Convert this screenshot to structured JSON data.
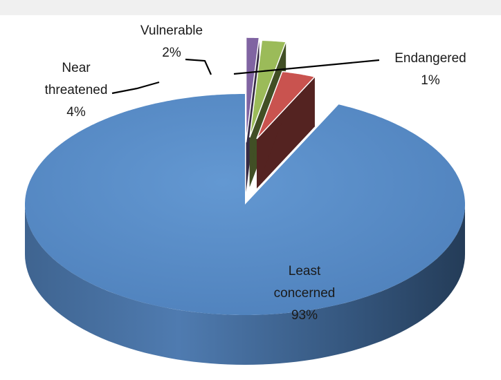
{
  "chart_data": {
    "type": "pie",
    "style": "3d-exploded",
    "title": "",
    "legend": "none",
    "slices": [
      {
        "key": "least",
        "name": "Least concerned",
        "label_lines": [
          "Least",
          "concerned"
        ],
        "value_label": "93%",
        "value": 93,
        "color": "#5b8fc9"
      },
      {
        "key": "near",
        "name": "Near threatened",
        "label_lines": [
          "Near",
          "threatened"
        ],
        "value_label": "4%",
        "value": 4,
        "color": "#c9534f"
      },
      {
        "key": "vulnerable",
        "name": "Vulnerable",
        "label_lines": [
          "Vulnerable"
        ],
        "value_label": "2%",
        "value": 2,
        "color": "#9bbb59"
      },
      {
        "key": "endangered",
        "name": "Endangered",
        "label_lines": [
          "Endangered"
        ],
        "value_label": "1%",
        "value": 1,
        "color": "#8064a2"
      }
    ]
  }
}
